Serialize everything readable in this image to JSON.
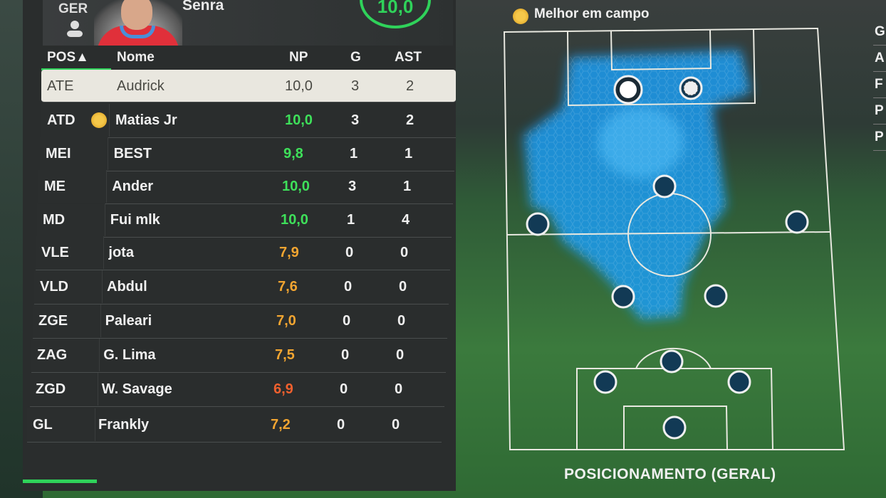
{
  "header": {
    "team_code": "GER",
    "player_name": "Senra",
    "rating": "10,0"
  },
  "table": {
    "columns": {
      "pos": "POS▲",
      "name": "Nome",
      "np": "NP",
      "g": "G",
      "ast": "AST"
    },
    "rows": [
      {
        "pos": "ATE",
        "name": "Audrick",
        "np": "10,0",
        "g": "3",
        "ast": "2",
        "np_color": "#4a4a44",
        "selected": true
      },
      {
        "pos": "ATD",
        "name": "Matias Jr",
        "np": "10,0",
        "g": "3",
        "ast": "2",
        "np_color": "#3ee05a",
        "best": true
      },
      {
        "pos": "MEI",
        "name": "BEST",
        "np": "9,8",
        "g": "1",
        "ast": "1",
        "np_color": "#3ee05a"
      },
      {
        "pos": "ME",
        "name": "Ander",
        "np": "10,0",
        "g": "3",
        "ast": "1",
        "np_color": "#3ee05a"
      },
      {
        "pos": "MD",
        "name": "Fui mlk",
        "np": "10,0",
        "g": "1",
        "ast": "4",
        "np_color": "#3ee05a"
      },
      {
        "pos": "VLE",
        "name": "jota",
        "np": "7,9",
        "g": "0",
        "ast": "0",
        "np_color": "#f2a531"
      },
      {
        "pos": "VLD",
        "name": "Abdul",
        "np": "7,6",
        "g": "0",
        "ast": "0",
        "np_color": "#f2a531"
      },
      {
        "pos": "ZGE",
        "name": "Paleari",
        "np": "7,0",
        "g": "0",
        "ast": "0",
        "np_color": "#f2a531"
      },
      {
        "pos": "ZAG",
        "name": "G. Lima",
        "np": "7,5",
        "g": "0",
        "ast": "0",
        "np_color": "#f2a531"
      },
      {
        "pos": "ZGD",
        "name": "W. Savage",
        "np": "6,9",
        "g": "0",
        "ast": "0",
        "np_color": "#f0602e"
      },
      {
        "pos": "GL",
        "name": "Frankly",
        "np": "7,2",
        "g": "0",
        "ast": "0",
        "np_color": "#f2a531"
      }
    ]
  },
  "pitch": {
    "legend_label": "Melhor em campo",
    "title": "POSICIONAMENTO (GERAL)",
    "accent": "#2fd25a",
    "heatmap_color": "#1e9cf0"
  },
  "right_partial_labels": [
    "G",
    "A",
    "F",
    "P",
    "P"
  ]
}
